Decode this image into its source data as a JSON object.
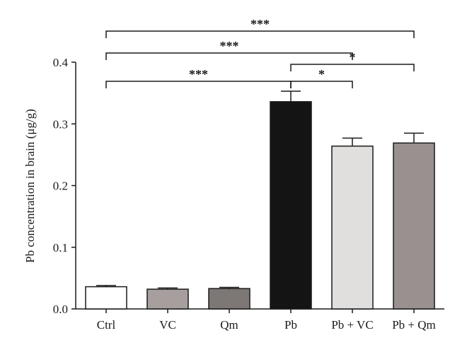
{
  "chart_data": {
    "type": "bar",
    "categories": [
      "Ctrl",
      "VC",
      "Qm",
      "Pb",
      "Pb + VC",
      "Pb + Qm"
    ],
    "values": [
      0.036,
      0.032,
      0.033,
      0.336,
      0.264,
      0.269
    ],
    "errors": [
      0.002,
      0.002,
      0.002,
      0.017,
      0.013,
      0.016
    ],
    "bar_colors": [
      "#ffffff",
      "#a79e9e",
      "#7d7775",
      "#141414",
      "#e1dede",
      "#98918f"
    ],
    "title": "",
    "xlabel": "",
    "ylabel": "Pb concentration in brain (μg/g)",
    "ylim": [
      0,
      0.4
    ],
    "yticks": [
      "0.0",
      "0.1",
      "0.2",
      "0.3",
      "0.4"
    ],
    "grid": false,
    "legend": "none",
    "significance": [
      {
        "from": "Ctrl",
        "to": "Pb + Qm",
        "label": "***"
      },
      {
        "from": "Ctrl",
        "to": "Pb + VC",
        "label": "***"
      },
      {
        "from": "Pb",
        "to": "Pb + Qm",
        "label": "*"
      },
      {
        "from": "Ctrl",
        "to": "Pb",
        "label": "***"
      },
      {
        "from": "Pb",
        "to": "Pb + VC",
        "label": "*"
      }
    ]
  }
}
